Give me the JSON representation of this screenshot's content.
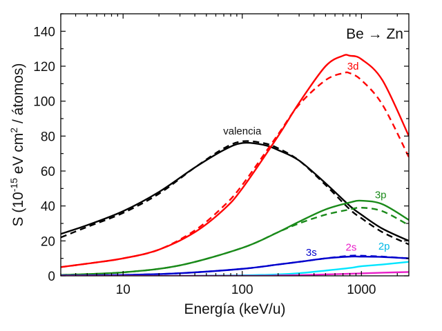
{
  "chart_data": {
    "type": "line",
    "annotation": "Be → Zn",
    "xlabel": "Energía (keV/u)",
    "ylabel_parts": [
      "S (10",
      "-15",
      " eV cm",
      "2",
      " / átomos)"
    ],
    "x_scale": "log",
    "xlim": [
      3,
      2500
    ],
    "ylim": [
      0,
      150
    ],
    "x_ticks": [
      10,
      100,
      1000
    ],
    "x_tick_labels": [
      "10",
      "100",
      "1000"
    ],
    "y_ticks": [
      0,
      20,
      40,
      60,
      80,
      100,
      120,
      140
    ],
    "y_tick_labels": [
      "0",
      "20",
      "40",
      "60",
      "80",
      "100",
      "120",
      "140"
    ],
    "grid": false,
    "series": [
      {
        "name": "valencia",
        "color": "#000000",
        "style": "solid",
        "x": [
          3,
          5,
          10,
          20,
          40,
          70,
          100,
          150,
          200,
          300,
          500,
          800,
          1000,
          1500,
          2500
        ],
        "y": [
          24,
          29,
          37,
          48,
          62,
          72,
          76,
          75,
          72,
          66,
          53,
          40,
          35,
          27,
          20
        ]
      },
      {
        "name": "valencia",
        "color": "#000000",
        "style": "dashed",
        "x": [
          3,
          5,
          10,
          20,
          40,
          70,
          100,
          150,
          200,
          300,
          500,
          800,
          1000,
          1500,
          2500
        ],
        "y": [
          22,
          28,
          36,
          47,
          62,
          73,
          77,
          76,
          73,
          66,
          52,
          38,
          33,
          25,
          18
        ]
      },
      {
        "name": "3d",
        "color": "#ff0000",
        "style": "solid",
        "x": [
          3,
          5,
          10,
          20,
          40,
          70,
          100,
          200,
          300,
          500,
          700,
          800,
          1000,
          1500,
          2500
        ],
        "y": [
          5,
          7,
          10,
          15,
          25,
          38,
          50,
          80,
          99,
          120,
          126,
          126,
          124,
          112,
          80
        ]
      },
      {
        "name": "3d",
        "color": "#ff0000",
        "style": "dashed",
        "x": [
          3,
          5,
          10,
          20,
          40,
          70,
          100,
          200,
          300,
          500,
          700,
          800,
          1000,
          1500,
          2500
        ],
        "y": [
          5,
          7,
          10,
          15,
          26,
          40,
          52,
          81,
          98,
          112,
          116,
          116,
          112,
          98,
          68
        ]
      },
      {
        "name": "3p",
        "color": "#1a8a1a",
        "style": "solid",
        "x": [
          3,
          10,
          30,
          100,
          200,
          300,
          500,
          800,
          1000,
          1500,
          2500
        ],
        "y": [
          0.5,
          2,
          6,
          16,
          25,
          31,
          38,
          42,
          43,
          41,
          32
        ]
      },
      {
        "name": "3p",
        "color": "#1a8a1a",
        "style": "dashed",
        "x": [
          3,
          10,
          30,
          100,
          200,
          300,
          500,
          800,
          1000,
          1500,
          2500
        ],
        "y": [
          0.5,
          2,
          6,
          16,
          25,
          30,
          35,
          38,
          39,
          37,
          29
        ]
      },
      {
        "name": "3s",
        "color": "#0000cc",
        "style": "solid",
        "x": [
          3,
          10,
          30,
          100,
          200,
          300,
          500,
          800,
          1000,
          1500,
          2500
        ],
        "y": [
          0.2,
          0.5,
          1.5,
          4,
          6.5,
          8,
          10,
          11,
          11,
          10.8,
          10
        ]
      },
      {
        "name": "3s",
        "color": "#0000cc",
        "style": "dashed",
        "x": [
          3,
          10,
          30,
          100,
          200,
          300,
          500,
          800,
          1000,
          1500,
          2500
        ],
        "y": [
          0.2,
          0.5,
          1.5,
          4,
          6.5,
          8,
          10,
          11.5,
          11.5,
          11,
          10
        ]
      },
      {
        "name": "2p",
        "color": "#00e5ff",
        "style": "solid",
        "x": [
          3,
          30,
          100,
          200,
          300,
          500,
          800,
          1000,
          1500,
          2500
        ],
        "y": [
          0,
          0,
          0.3,
          0.8,
          1.5,
          3,
          4.5,
          5.5,
          6.5,
          8
        ]
      },
      {
        "name": "2s",
        "color": "#e81ec8",
        "style": "solid",
        "x": [
          3,
          100,
          200,
          300,
          500,
          800,
          1000,
          1500,
          2500
        ],
        "y": [
          0,
          0,
          0.2,
          0.4,
          0.8,
          1.2,
          1.4,
          1.8,
          2.2
        ]
      }
    ],
    "labels": [
      {
        "text": "valencia",
        "color": "#111111",
        "x": 100,
        "y": 81
      },
      {
        "text": "3d",
        "color": "#ff0000",
        "x": 850,
        "y": 118
      },
      {
        "text": "3p",
        "color": "#1a8a1a",
        "x": 1450,
        "y": 44.5
      },
      {
        "text": "3s",
        "color": "#0000cc",
        "x": 380,
        "y": 11.5
      },
      {
        "text": "2s",
        "color": "#e81ec8",
        "x": 820,
        "y": 14.5
      },
      {
        "text": "2p",
        "color": "#00b8e6",
        "x": 1550,
        "y": 15
      }
    ]
  }
}
